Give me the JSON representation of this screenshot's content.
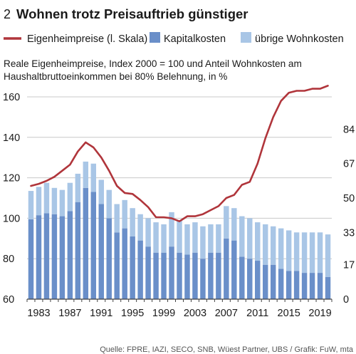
{
  "header": {
    "number": "2",
    "title": "Wohnen trotz Preisauftrieb günstiger"
  },
  "subtitle": {
    "line1": "Reale Eigenheimpreise, Index 2000 = 100 und Anteil Wohnkosten am",
    "line2": "Haushaltbruttoeinkommen bei 80% Belehnung, in %"
  },
  "source": "Quelle: FPRE, IAZI, SECO, SNB, Wüest Partner, UBS / Grafik: FuW, mta",
  "colors": {
    "line": "#b0353b",
    "capital": "#6a8fc9",
    "other": "#a9c6e6",
    "grid": "#c8c8c8",
    "axis": "#444444"
  },
  "chart_data": {
    "type": "bar",
    "title": "Wohnen trotz Preisauftrieb günstiger",
    "left_axis": {
      "ylim": [
        60,
        160
      ],
      "ticks": [
        "60",
        "80",
        "100",
        "120",
        "140",
        "160"
      ]
    },
    "right_axis": {
      "ylim": [
        0,
        100
      ],
      "ticks": [
        "0",
        "17",
        "33",
        "50",
        "67",
        "84"
      ]
    },
    "x": [
      1982,
      1983,
      1984,
      1985,
      1986,
      1987,
      1988,
      1989,
      1990,
      1991,
      1992,
      1993,
      1994,
      1995,
      1996,
      1997,
      1998,
      1999,
      2000,
      2001,
      2002,
      2003,
      2004,
      2005,
      2006,
      2007,
      2008,
      2009,
      2010,
      2011,
      2012,
      2013,
      2014,
      2015,
      2016,
      2017,
      2018,
      2019,
      2020
    ],
    "x_tick_labels": [
      "1983",
      "1987",
      "1991",
      "1995",
      "1999",
      "2003",
      "2007",
      "2011",
      "2015",
      "2019"
    ],
    "series": [
      {
        "name": "Eigenheimpreise (l. Skala)",
        "kind": "line",
        "axis": "left",
        "values": [
          116,
          117,
          118.5,
          120.5,
          123.5,
          126.5,
          133,
          137.5,
          135,
          130,
          123.5,
          116,
          112.5,
          112,
          109,
          105.5,
          100.5,
          100.5,
          100,
          98.5,
          101,
          101,
          102,
          104,
          106,
          110,
          111.5,
          116.5,
          118,
          127,
          139.5,
          150,
          158,
          162,
          163,
          163,
          164,
          164,
          165.5
        ]
      },
      {
        "name": "Kapitalkosten",
        "kind": "bar-stacked",
        "axis": "right",
        "values": [
          39.5,
          41.5,
          42.5,
          42,
          41,
          43.5,
          48,
          55,
          53,
          47,
          40,
          33,
          35,
          31,
          29,
          26,
          23,
          23,
          26,
          23,
          22,
          23,
          20,
          23,
          23,
          30,
          29,
          21,
          20,
          19,
          17,
          17,
          15,
          14,
          14,
          13,
          13,
          13,
          11
        ]
      },
      {
        "name": "übrige Wohnkosten",
        "kind": "bar-stacked",
        "axis": "right",
        "values": [
          14,
          14,
          15,
          13,
          13,
          14,
          14,
          13,
          14,
          12,
          14,
          14,
          14,
          14,
          13,
          14,
          15,
          14,
          17,
          16,
          15,
          15,
          16,
          14,
          14,
          16,
          16,
          20,
          20,
          19,
          20,
          19,
          20,
          20,
          19,
          20,
          20,
          20,
          21
        ]
      }
    ]
  }
}
